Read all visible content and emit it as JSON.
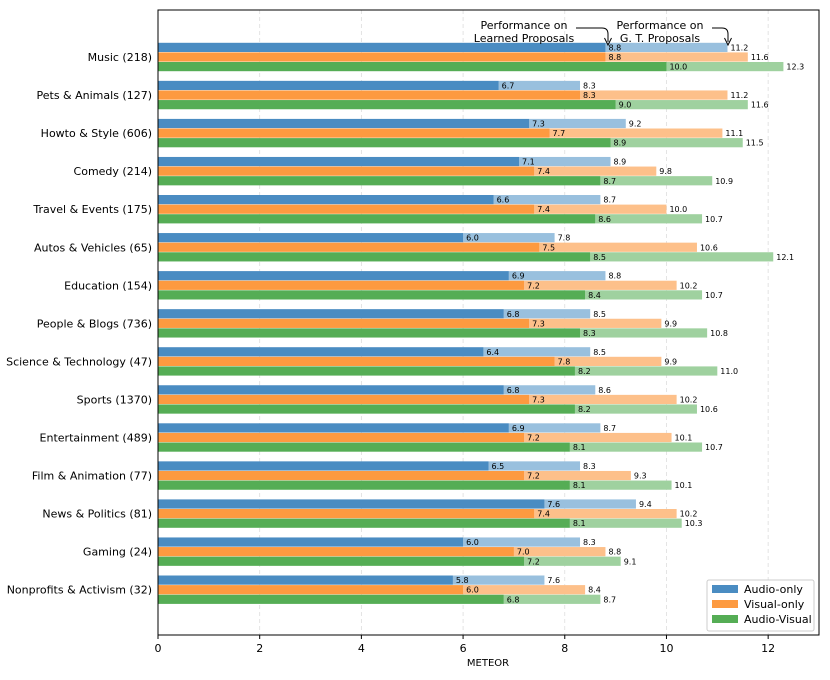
{
  "chart_data": {
    "type": "bar",
    "orientation": "horizontal",
    "xlabel": "METEOR",
    "xlim": [
      0,
      13
    ],
    "xticks": [
      "0",
      "2",
      "4",
      "6",
      "8",
      "10",
      "12"
    ],
    "grid": "vertical-dashed",
    "legend_position": "bottom-right",
    "categories": [
      "Music (218)",
      "Pets & Animals (127)",
      "Howto & Style (606)",
      "Comedy (214)",
      "Travel & Events (175)",
      "Autos & Vehicles (65)",
      "Education (154)",
      "People & Blogs (736)",
      "Science & Technology (47)",
      "Sports (1370)",
      "Entertainment (489)",
      "Film & Animation (77)",
      "News & Politics (81)",
      "Gaming (24)",
      "Nonprofits & Activism (32)"
    ],
    "series": [
      {
        "name": "Audio-only",
        "color": "#4a8cc2",
        "light_color": "#99c0de",
        "learned": [
          8.8,
          6.7,
          7.3,
          7.1,
          6.6,
          6.0,
          6.9,
          6.8,
          6.4,
          6.8,
          6.9,
          6.5,
          7.6,
          6.0,
          5.8
        ],
        "gt": [
          11.2,
          8.3,
          9.2,
          8.9,
          8.7,
          7.8,
          8.8,
          8.5,
          8.5,
          8.6,
          8.7,
          8.3,
          9.4,
          8.3,
          7.6
        ],
        "learned_labels": [
          "8.8",
          "6.7",
          "7.3",
          "7.1",
          "6.6",
          "6.0",
          "6.9",
          "6.8",
          "6.4",
          "6.8",
          "6.9",
          "6.5",
          "7.6",
          "6.0",
          "5.8"
        ],
        "gt_labels": [
          "11.2",
          "8.3",
          "9.2",
          "8.9",
          "8.7",
          "7.8",
          "8.8",
          "8.5",
          "8.5",
          "8.6",
          "8.7",
          "8.3",
          "9.4",
          "8.3",
          "7.6"
        ]
      },
      {
        "name": "Visual-only",
        "color": "#fd9a40",
        "light_color": "#fdc08a",
        "learned": [
          8.8,
          8.3,
          7.7,
          7.4,
          7.4,
          7.5,
          7.2,
          7.3,
          7.8,
          7.3,
          7.2,
          7.2,
          7.4,
          7.0,
          6.0
        ],
        "gt": [
          11.6,
          11.2,
          11.1,
          9.8,
          10.0,
          10.6,
          10.2,
          9.9,
          9.9,
          10.2,
          10.1,
          9.3,
          10.2,
          8.8,
          8.4
        ],
        "learned_labels": [
          "8.8",
          "8.3",
          "7.7",
          "7.4",
          "7.4",
          "7.5",
          "7.2",
          "7.3",
          "7.8",
          "7.3",
          "7.2",
          "7.2",
          "7.4",
          "7.0",
          "6.0"
        ],
        "gt_labels": [
          "11.6",
          "11.2",
          "11.1",
          "9.8",
          "10.0",
          "10.6",
          "10.2",
          "9.9",
          "9.9",
          "10.2",
          "10.1",
          "9.3",
          "10.2",
          "8.8",
          "8.4"
        ]
      },
      {
        "name": "Audio-Visual",
        "color": "#55ad55",
        "light_color": "#9fd19f",
        "learned": [
          10.0,
          9.0,
          8.9,
          8.7,
          8.6,
          8.5,
          8.4,
          8.3,
          8.2,
          8.2,
          8.1,
          8.1,
          8.1,
          7.2,
          6.8
        ],
        "gt": [
          12.3,
          11.6,
          11.5,
          10.9,
          10.7,
          12.1,
          10.7,
          10.8,
          11.0,
          10.6,
          10.7,
          10.1,
          10.3,
          9.1,
          8.7
        ],
        "learned_labels": [
          "10.0",
          "9.0",
          "8.9",
          "8.7",
          "8.6",
          "8.5",
          "8.4",
          "8.3",
          "8.2",
          "8.2",
          "8.1",
          "8.1",
          "8.1",
          "7.2",
          "6.8"
        ],
        "gt_labels": [
          "12.3",
          "11.6",
          "11.5",
          "10.9",
          "10.7",
          "12.1",
          "10.7",
          "10.8",
          "11.0",
          "10.6",
          "10.7",
          "10.1",
          "10.3",
          "9.1",
          "8.7"
        ]
      }
    ],
    "annotations": [
      {
        "lines": [
          "Performance on",
          "Learned Proposals"
        ],
        "points_to": "learned",
        "x": 8.8
      },
      {
        "lines": [
          "Performance on",
          "G. T. Proposals"
        ],
        "points_to": "gt",
        "x": 11.2
      }
    ]
  }
}
